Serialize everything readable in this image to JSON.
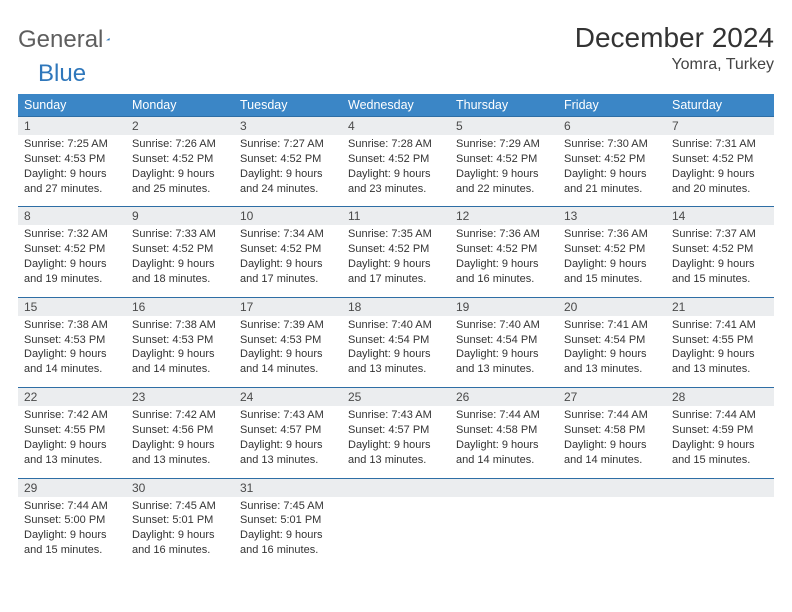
{
  "logo": {
    "word1": "General",
    "word2": "Blue"
  },
  "title": "December 2024",
  "location": "Yomra, Turkey",
  "colors": {
    "header_bg": "#3b86c6",
    "header_text": "#ffffff",
    "daynum_bg": "#ebedef",
    "daynum_border": "#2e6ea5",
    "body_text": "#333333",
    "logo_gray": "#5e5e5e",
    "logo_blue": "#2f77bb"
  },
  "weekdays": [
    "Sunday",
    "Monday",
    "Tuesday",
    "Wednesday",
    "Thursday",
    "Friday",
    "Saturday"
  ],
  "weeks": [
    [
      {
        "n": "1",
        "sr": "Sunrise: 7:25 AM",
        "ss": "Sunset: 4:53 PM",
        "dl": "Daylight: 9 hours and 27 minutes."
      },
      {
        "n": "2",
        "sr": "Sunrise: 7:26 AM",
        "ss": "Sunset: 4:52 PM",
        "dl": "Daylight: 9 hours and 25 minutes."
      },
      {
        "n": "3",
        "sr": "Sunrise: 7:27 AM",
        "ss": "Sunset: 4:52 PM",
        "dl": "Daylight: 9 hours and 24 minutes."
      },
      {
        "n": "4",
        "sr": "Sunrise: 7:28 AM",
        "ss": "Sunset: 4:52 PM",
        "dl": "Daylight: 9 hours and 23 minutes."
      },
      {
        "n": "5",
        "sr": "Sunrise: 7:29 AM",
        "ss": "Sunset: 4:52 PM",
        "dl": "Daylight: 9 hours and 22 minutes."
      },
      {
        "n": "6",
        "sr": "Sunrise: 7:30 AM",
        "ss": "Sunset: 4:52 PM",
        "dl": "Daylight: 9 hours and 21 minutes."
      },
      {
        "n": "7",
        "sr": "Sunrise: 7:31 AM",
        "ss": "Sunset: 4:52 PM",
        "dl": "Daylight: 9 hours and 20 minutes."
      }
    ],
    [
      {
        "n": "8",
        "sr": "Sunrise: 7:32 AM",
        "ss": "Sunset: 4:52 PM",
        "dl": "Daylight: 9 hours and 19 minutes."
      },
      {
        "n": "9",
        "sr": "Sunrise: 7:33 AM",
        "ss": "Sunset: 4:52 PM",
        "dl": "Daylight: 9 hours and 18 minutes."
      },
      {
        "n": "10",
        "sr": "Sunrise: 7:34 AM",
        "ss": "Sunset: 4:52 PM",
        "dl": "Daylight: 9 hours and 17 minutes."
      },
      {
        "n": "11",
        "sr": "Sunrise: 7:35 AM",
        "ss": "Sunset: 4:52 PM",
        "dl": "Daylight: 9 hours and 17 minutes."
      },
      {
        "n": "12",
        "sr": "Sunrise: 7:36 AM",
        "ss": "Sunset: 4:52 PM",
        "dl": "Daylight: 9 hours and 16 minutes."
      },
      {
        "n": "13",
        "sr": "Sunrise: 7:36 AM",
        "ss": "Sunset: 4:52 PM",
        "dl": "Daylight: 9 hours and 15 minutes."
      },
      {
        "n": "14",
        "sr": "Sunrise: 7:37 AM",
        "ss": "Sunset: 4:52 PM",
        "dl": "Daylight: 9 hours and 15 minutes."
      }
    ],
    [
      {
        "n": "15",
        "sr": "Sunrise: 7:38 AM",
        "ss": "Sunset: 4:53 PM",
        "dl": "Daylight: 9 hours and 14 minutes."
      },
      {
        "n": "16",
        "sr": "Sunrise: 7:38 AM",
        "ss": "Sunset: 4:53 PM",
        "dl": "Daylight: 9 hours and 14 minutes."
      },
      {
        "n": "17",
        "sr": "Sunrise: 7:39 AM",
        "ss": "Sunset: 4:53 PM",
        "dl": "Daylight: 9 hours and 14 minutes."
      },
      {
        "n": "18",
        "sr": "Sunrise: 7:40 AM",
        "ss": "Sunset: 4:54 PM",
        "dl": "Daylight: 9 hours and 13 minutes."
      },
      {
        "n": "19",
        "sr": "Sunrise: 7:40 AM",
        "ss": "Sunset: 4:54 PM",
        "dl": "Daylight: 9 hours and 13 minutes."
      },
      {
        "n": "20",
        "sr": "Sunrise: 7:41 AM",
        "ss": "Sunset: 4:54 PM",
        "dl": "Daylight: 9 hours and 13 minutes."
      },
      {
        "n": "21",
        "sr": "Sunrise: 7:41 AM",
        "ss": "Sunset: 4:55 PM",
        "dl": "Daylight: 9 hours and 13 minutes."
      }
    ],
    [
      {
        "n": "22",
        "sr": "Sunrise: 7:42 AM",
        "ss": "Sunset: 4:55 PM",
        "dl": "Daylight: 9 hours and 13 minutes."
      },
      {
        "n": "23",
        "sr": "Sunrise: 7:42 AM",
        "ss": "Sunset: 4:56 PM",
        "dl": "Daylight: 9 hours and 13 minutes."
      },
      {
        "n": "24",
        "sr": "Sunrise: 7:43 AM",
        "ss": "Sunset: 4:57 PM",
        "dl": "Daylight: 9 hours and 13 minutes."
      },
      {
        "n": "25",
        "sr": "Sunrise: 7:43 AM",
        "ss": "Sunset: 4:57 PM",
        "dl": "Daylight: 9 hours and 13 minutes."
      },
      {
        "n": "26",
        "sr": "Sunrise: 7:44 AM",
        "ss": "Sunset: 4:58 PM",
        "dl": "Daylight: 9 hours and 14 minutes."
      },
      {
        "n": "27",
        "sr": "Sunrise: 7:44 AM",
        "ss": "Sunset: 4:58 PM",
        "dl": "Daylight: 9 hours and 14 minutes."
      },
      {
        "n": "28",
        "sr": "Sunrise: 7:44 AM",
        "ss": "Sunset: 4:59 PM",
        "dl": "Daylight: 9 hours and 15 minutes."
      }
    ],
    [
      {
        "n": "29",
        "sr": "Sunrise: 7:44 AM",
        "ss": "Sunset: 5:00 PM",
        "dl": "Daylight: 9 hours and 15 minutes."
      },
      {
        "n": "30",
        "sr": "Sunrise: 7:45 AM",
        "ss": "Sunset: 5:01 PM",
        "dl": "Daylight: 9 hours and 16 minutes."
      },
      {
        "n": "31",
        "sr": "Sunrise: 7:45 AM",
        "ss": "Sunset: 5:01 PM",
        "dl": "Daylight: 9 hours and 16 minutes."
      },
      {
        "n": "",
        "sr": "",
        "ss": "",
        "dl": ""
      },
      {
        "n": "",
        "sr": "",
        "ss": "",
        "dl": ""
      },
      {
        "n": "",
        "sr": "",
        "ss": "",
        "dl": ""
      },
      {
        "n": "",
        "sr": "",
        "ss": "",
        "dl": ""
      }
    ]
  ]
}
